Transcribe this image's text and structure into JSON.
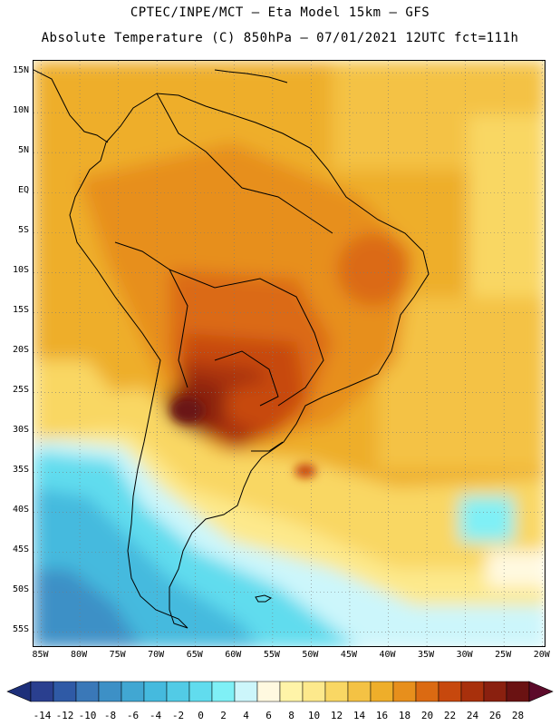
{
  "header": {
    "line1": "CPTEC/INPE/MCT –  Eta Model 15km – GFS",
    "line2": "Absolute Temperature (C) 850hPa – 07/01/2021 12UTC fct=111h"
  },
  "map": {
    "lat_labels": [
      "15N",
      "10N",
      "5N",
      "EQ",
      "5S",
      "10S",
      "15S",
      "20S",
      "25S",
      "30S",
      "35S",
      "40S",
      "45S",
      "50S",
      "55S"
    ],
    "lon_labels": [
      "85W",
      "80W",
      "75W",
      "70W",
      "65W",
      "60W",
      "55W",
      "50W",
      "45W",
      "40W",
      "35W",
      "30W",
      "25W",
      "20W"
    ],
    "lat_range": [
      -57,
      16.5
    ],
    "lon_range": [
      -86,
      -19.5
    ],
    "grid_style": "dotted"
  },
  "colorbar": {
    "labels": [
      "-14",
      "-12",
      "-10",
      "-8",
      "-6",
      "-4",
      "-2",
      "0",
      "2",
      "4",
      "6",
      "8",
      "10",
      "12",
      "14",
      "16",
      "18",
      "20",
      "22",
      "24",
      "26",
      "28"
    ],
    "colors": [
      "#2a3f8f",
      "#2f5aa6",
      "#3a78b8",
      "#3d90c6",
      "#41a7d2",
      "#45bade",
      "#52cbe6",
      "#61dcee",
      "#7ff0f6",
      "#ccf6fb",
      "#fff9e0",
      "#fff4a8",
      "#fde98c",
      "#f9d764",
      "#f4c244",
      "#eeae2a",
      "#e78f1c",
      "#db6a12",
      "#c7480d",
      "#a8300c",
      "#8a200f",
      "#6a1212"
    ],
    "under_color": "#1d2f7a",
    "over_color": "#5c0a2a"
  }
}
